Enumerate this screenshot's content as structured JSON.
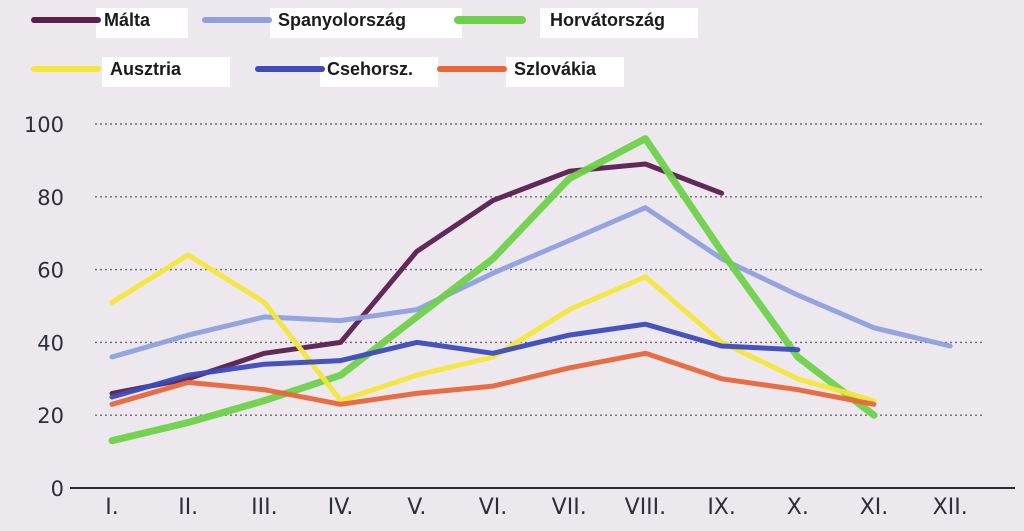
{
  "chart_data": {
    "type": "line",
    "title": "",
    "xlabel": "",
    "ylabel": "",
    "categories": [
      "I.",
      "II.",
      "III.",
      "IV.",
      "V.",
      "VI.",
      "VII.",
      "VIII.",
      "IX.",
      "X.",
      "XI.",
      "XII."
    ],
    "ylim": [
      0,
      100
    ],
    "yticks": [
      0,
      20,
      40,
      60,
      80,
      100
    ],
    "grid": true,
    "legend_position": "top",
    "series": [
      {
        "name": "Málta",
        "color": "#5a1f4e",
        "values": [
          26,
          30,
          37,
          40,
          65,
          79,
          87,
          89,
          81,
          null,
          null,
          null
        ]
      },
      {
        "name": "Spanyolország",
        "color": "#8fa0dc",
        "values": [
          36,
          42,
          47,
          46,
          49,
          59,
          68,
          77,
          63,
          53,
          44,
          39
        ]
      },
      {
        "name": "Horvátország",
        "color": "#6fd14a",
        "values": [
          13,
          18,
          24,
          31,
          47,
          63,
          85,
          96,
          65,
          36,
          20,
          null
        ]
      },
      {
        "name": "Ausztria",
        "color": "#f4e63a",
        "values": [
          51,
          64,
          51,
          24,
          31,
          36,
          49,
          58,
          40,
          30,
          24,
          null
        ]
      },
      {
        "name": "Csehorsz.",
        "color": "#3e4bb8",
        "values": [
          25,
          31,
          34,
          35,
          40,
          37,
          42,
          45,
          39,
          38,
          null,
          null
        ]
      },
      {
        "name": "Szlovákia",
        "color": "#e8663a",
        "values": [
          23,
          29,
          27,
          23,
          26,
          28,
          33,
          37,
          30,
          27,
          23,
          null
        ]
      }
    ]
  }
}
